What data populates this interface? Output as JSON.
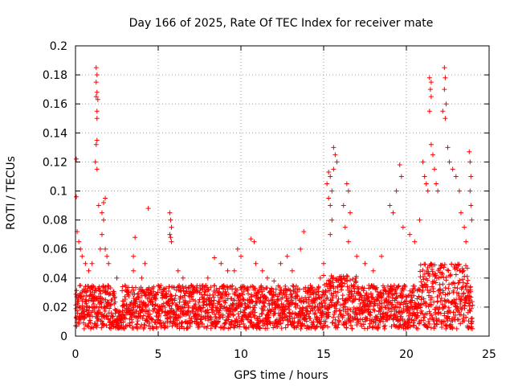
{
  "chart_data": {
    "type": "scatter",
    "title": "Day 166 of 2025, Rate Of TEC Index for receiver mate",
    "xlabel": "GPS time / hours",
    "ylabel": "ROTI / TECUs",
    "xlim": [
      0,
      25
    ],
    "ylim": [
      0,
      0.2
    ],
    "xticks": [
      0,
      5,
      10,
      15,
      20,
      25
    ],
    "xtick_labels": [
      "0",
      "5",
      "10",
      "15",
      "20",
      "25"
    ],
    "yticks": [
      0,
      0.02,
      0.04,
      0.06,
      0.08,
      0.1,
      0.12,
      0.14,
      0.16,
      0.18,
      0.2
    ],
    "ytick_labels": [
      "0",
      "0.02",
      "0.04",
      "0.06",
      "0.08",
      "0.1",
      "0.12",
      "0.14",
      "0.16",
      "0.18",
      "0.2"
    ],
    "grid": true,
    "marker": "+",
    "color": "#ff0000",
    "series": [
      {
        "name": "ROTI",
        "points": [
          [
            0.05,
            0.122
          ],
          [
            0.05,
            0.096
          ],
          [
            0.1,
            0.072
          ],
          [
            0.2,
            0.065
          ],
          [
            0.3,
            0.06
          ],
          [
            0.4,
            0.055
          ],
          [
            0.6,
            0.05
          ],
          [
            0.8,
            0.045
          ],
          [
            1.0,
            0.05
          ],
          [
            1.25,
            0.185
          ],
          [
            1.3,
            0.18
          ],
          [
            1.25,
            0.175
          ],
          [
            1.3,
            0.168
          ],
          [
            1.25,
            0.165
          ],
          [
            1.35,
            0.163
          ],
          [
            1.3,
            0.155
          ],
          [
            1.3,
            0.15
          ],
          [
            1.3,
            0.135
          ],
          [
            1.25,
            0.132
          ],
          [
            1.2,
            0.12
          ],
          [
            1.3,
            0.115
          ],
          [
            1.4,
            0.09
          ],
          [
            1.6,
            0.085
          ],
          [
            1.8,
            0.095
          ],
          [
            1.7,
            0.092
          ],
          [
            1.7,
            0.08
          ],
          [
            1.6,
            0.07
          ],
          [
            1.5,
            0.06
          ],
          [
            1.8,
            0.06
          ],
          [
            1.9,
            0.055
          ],
          [
            2.0,
            0.05
          ],
          [
            2.5,
            0.04
          ],
          [
            3.0,
            0.035
          ],
          [
            3.5,
            0.045
          ],
          [
            3.5,
            0.055
          ],
          [
            3.6,
            0.068
          ],
          [
            4.0,
            0.04
          ],
          [
            4.2,
            0.05
          ],
          [
            4.4,
            0.088
          ],
          [
            4.5,
            0.03
          ],
          [
            5.0,
            0.035
          ],
          [
            5.7,
            0.085
          ],
          [
            5.75,
            0.08
          ],
          [
            5.8,
            0.075
          ],
          [
            5.7,
            0.07
          ],
          [
            5.75,
            0.068
          ],
          [
            5.8,
            0.065
          ],
          [
            6.2,
            0.045
          ],
          [
            6.5,
            0.04
          ],
          [
            7.0,
            0.035
          ],
          [
            7.5,
            0.03
          ],
          [
            8.0,
            0.04
          ],
          [
            8.4,
            0.054
          ],
          [
            8.8,
            0.05
          ],
          [
            9.2,
            0.045
          ],
          [
            9.6,
            0.045
          ],
          [
            9.8,
            0.06
          ],
          [
            10.0,
            0.055
          ],
          [
            10.6,
            0.067
          ],
          [
            10.8,
            0.065
          ],
          [
            10.9,
            0.05
          ],
          [
            11.3,
            0.045
          ],
          [
            11.6,
            0.04
          ],
          [
            12.0,
            0.038
          ],
          [
            12.4,
            0.05
          ],
          [
            12.8,
            0.055
          ],
          [
            13.1,
            0.045
          ],
          [
            13.6,
            0.06
          ],
          [
            13.8,
            0.072
          ],
          [
            14.2,
            0.035
          ],
          [
            14.8,
            0.04
          ],
          [
            15.0,
            0.05
          ],
          [
            15.2,
            0.105
          ],
          [
            15.3,
            0.113
          ],
          [
            15.4,
            0.11
          ],
          [
            15.5,
            0.1
          ],
          [
            15.3,
            0.095
          ],
          [
            15.4,
            0.09
          ],
          [
            15.6,
            0.13
          ],
          [
            15.7,
            0.125
          ],
          [
            15.8,
            0.12
          ],
          [
            15.6,
            0.115
          ],
          [
            15.5,
            0.08
          ],
          [
            15.4,
            0.07
          ],
          [
            16.2,
            0.09
          ],
          [
            16.4,
            0.105
          ],
          [
            16.5,
            0.1
          ],
          [
            16.6,
            0.085
          ],
          [
            16.3,
            0.075
          ],
          [
            16.5,
            0.065
          ],
          [
            17.0,
            0.055
          ],
          [
            17.5,
            0.05
          ],
          [
            18.0,
            0.045
          ],
          [
            18.5,
            0.055
          ],
          [
            19.0,
            0.09
          ],
          [
            19.2,
            0.085
          ],
          [
            19.4,
            0.1
          ],
          [
            19.6,
            0.118
          ],
          [
            19.7,
            0.11
          ],
          [
            19.8,
            0.075
          ],
          [
            20.2,
            0.07
          ],
          [
            20.5,
            0.065
          ],
          [
            20.8,
            0.08
          ],
          [
            21.0,
            0.12
          ],
          [
            21.1,
            0.11
          ],
          [
            21.2,
            0.105
          ],
          [
            21.3,
            0.1
          ],
          [
            21.4,
            0.178
          ],
          [
            21.5,
            0.175
          ],
          [
            21.45,
            0.17
          ],
          [
            21.5,
            0.165
          ],
          [
            21.4,
            0.155
          ],
          [
            21.5,
            0.132
          ],
          [
            21.6,
            0.125
          ],
          [
            21.7,
            0.115
          ],
          [
            21.8,
            0.105
          ],
          [
            21.9,
            0.1
          ],
          [
            22.2,
            0.155
          ],
          [
            22.3,
            0.185
          ],
          [
            22.35,
            0.178
          ],
          [
            22.3,
            0.17
          ],
          [
            22.4,
            0.16
          ],
          [
            22.35,
            0.15
          ],
          [
            22.5,
            0.13
          ],
          [
            22.6,
            0.12
          ],
          [
            22.8,
            0.115
          ],
          [
            23.0,
            0.11
          ],
          [
            23.2,
            0.1
          ],
          [
            23.3,
            0.085
          ],
          [
            23.5,
            0.075
          ],
          [
            23.6,
            0.065
          ],
          [
            23.8,
            0.127
          ],
          [
            23.85,
            0.12
          ],
          [
            23.9,
            0.11
          ],
          [
            23.85,
            0.1
          ],
          [
            23.9,
            0.09
          ],
          [
            23.95,
            0.08
          ]
        ],
        "baseline_band": {
          "x_range": [
            0,
            24
          ],
          "typical_range": [
            0.005,
            0.035
          ]
        }
      }
    ]
  }
}
